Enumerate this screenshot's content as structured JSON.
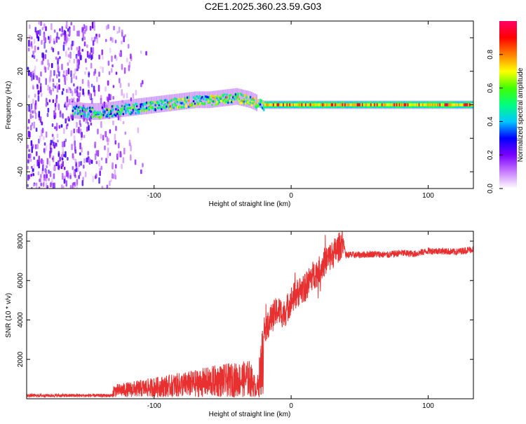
{
  "title": "C2E1.2025.360.23.59.G03",
  "chart_data": [
    {
      "type": "heatmap",
      "title": "C2E1.2025.360.23.59.G03",
      "xlabel": "Height of straight line (km)",
      "ylabel": "Frequency (Hz)",
      "xlim": [
        -193,
        133
      ],
      "ylim": [
        -50,
        50
      ],
      "xticks": [
        -100,
        0,
        100
      ],
      "xtick_labels": [
        "-100",
        "0",
        "100"
      ],
      "yticks": [
        -40,
        -20,
        0,
        20,
        40
      ],
      "ytick_labels": [
        "-40",
        "-20",
        "0",
        "20",
        "40"
      ],
      "ridge": {
        "x": [
          -160,
          -150,
          -140,
          -130,
          -120,
          -110,
          -100,
          -90,
          -80,
          -70,
          -60,
          -50,
          -40,
          -30,
          -25,
          -20,
          0,
          20,
          40,
          60,
          80,
          100,
          120,
          133
        ],
        "frequency_hz": [
          -3,
          -4,
          -4,
          -3,
          -2,
          -1,
          0,
          1,
          2,
          3,
          3,
          4,
          5,
          3,
          1,
          0,
          0,
          0,
          0,
          0,
          0,
          0,
          0,
          0
        ]
      },
      "noise_region_x": [
        -193,
        -110
      ],
      "colorbar": {
        "label": "Normalized spectral amplitude",
        "range": [
          0,
          1
        ],
        "ticks": [
          0.0,
          0.2,
          0.4,
          0.6,
          0.8
        ],
        "tick_labels": [
          "0.0",
          "0.2",
          "0.4",
          "0.6",
          "0.8"
        ],
        "colors": [
          "#ffffff",
          "#c87cff",
          "#7a00ff",
          "#0000ff",
          "#00c8ff",
          "#00ff7f",
          "#40ff00",
          "#ffff00",
          "#ff8000",
          "#ff0000",
          "#ff0066"
        ]
      }
    },
    {
      "type": "line",
      "xlabel": "Height of straight line (km)",
      "ylabel": "SNR (10 * v/v)",
      "xlim": [
        -193,
        133
      ],
      "ylim": [
        0,
        8500
      ],
      "xticks": [
        -100,
        0,
        100
      ],
      "xtick_labels": [
        "-100",
        "0",
        "100"
      ],
      "yticks": [
        2000,
        4000,
        6000,
        8000
      ],
      "ytick_labels": [
        "2000",
        "4000",
        "6000",
        "8000"
      ],
      "series": [
        {
          "name": "SNR",
          "color": "#e83030",
          "x": [
            -193,
            -170,
            -150,
            -130,
            -110,
            -90,
            -70,
            -55,
            -40,
            -30,
            -25,
            -20,
            -15,
            -10,
            -5,
            0,
            5,
            10,
            15,
            20,
            25,
            30,
            35,
            38,
            40,
            50,
            60,
            70,
            80,
            90,
            100,
            110,
            120,
            133
          ],
          "values": [
            250,
            260,
            300,
            500,
            700,
            900,
            1100,
            1300,
            1400,
            1500,
            600,
            3500,
            4000,
            4500,
            4300,
            5000,
            5400,
            5600,
            6200,
            6500,
            7000,
            7300,
            7700,
            8000,
            7300,
            7300,
            7350,
            7300,
            7400,
            7350,
            7500,
            7500,
            7450,
            7600
          ]
        }
      ]
    }
  ]
}
